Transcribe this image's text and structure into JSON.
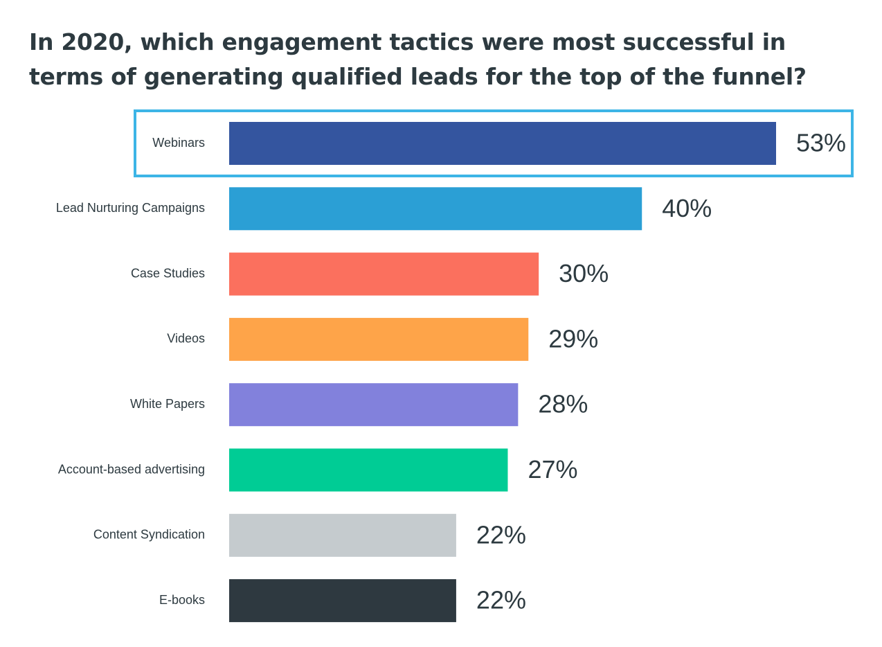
{
  "chart_data": {
    "type": "bar",
    "orientation": "horizontal",
    "title": "In 2020, which engagement tactics were most successful in terms of generating qualified leads for the top of the funnel?",
    "categories": [
      "Webinars",
      "Lead Nurturing Campaigns",
      "Case Studies",
      "Videos",
      "White Papers",
      "Account-based advertising",
      "Content Syndication",
      "E-books"
    ],
    "values": [
      53,
      40,
      30,
      29,
      28,
      27,
      22,
      22
    ],
    "value_labels": [
      "53%",
      "40%",
      "30%",
      "29%",
      "28%",
      "27%",
      "22%",
      "22%"
    ],
    "colors": [
      "#34559f",
      "#2b9fd5",
      "#fb705e",
      "#fea449",
      "#8281dc",
      "#00cc95",
      "#c5cbce",
      "#2e3940"
    ],
    "highlight_category": "Webinars",
    "highlight_color": "#3db5e6",
    "xlim": [
      0,
      53
    ],
    "grid": false,
    "legend": "none"
  }
}
